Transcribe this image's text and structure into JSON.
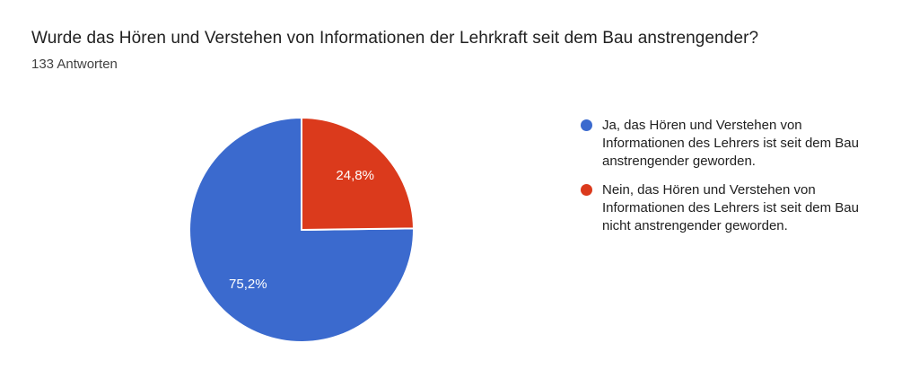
{
  "header": {
    "title": "Wurde das Hören und Verstehen von Informationen der Lehrkraft seit dem Bau anstrengender?",
    "subtitle": "133 Antworten"
  },
  "chart_data": {
    "type": "pie",
    "title": "Wurde das Hören und Verstehen von Informationen der Lehrkraft seit dem Bau anstrengender?",
    "subtitle": "133 Antworten",
    "start_angle_deg": 0,
    "direction": "counterclockwise",
    "legend_position": "right",
    "slice_label_color": "#ffffff",
    "slices": [
      {
        "label": "Ja, das Hören und Verstehen von Informationen des Lehrers ist seit dem Bau anstrengender geworden.",
        "value_pct": 75.2,
        "display_pct": "75,2%",
        "color": "#3B6ACE"
      },
      {
        "label": "Nein, das Hören und Verstehen von Informationen des Lehrers ist seit dem Bau nicht anstrengender geworden.",
        "value_pct": 24.8,
        "display_pct": "24,8%",
        "color": "#DB3A1C"
      }
    ]
  }
}
